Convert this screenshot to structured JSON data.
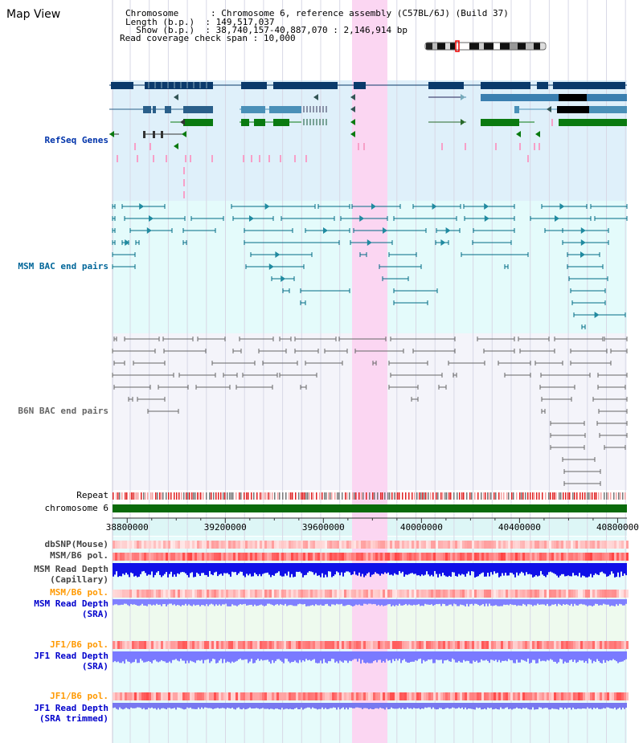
{
  "view": {
    "title": "Map View",
    "info_lines": [
      {
        "key": "Chromosome     ",
        "value": "Chromosome 6, reference assembly (C57BL/6J) (Build 37)"
      },
      {
        "key": "Length (b.p.) ",
        "value": "149,517,037"
      },
      {
        "key": "  Show (b.p.) ",
        "value": "38,740,157-40,887,070 : 2,146,914 bp"
      },
      {
        "key": "Read coverage check span",
        "value": "10,000"
      }
    ]
  },
  "tracks": {
    "refseq": "RefSeq Genes",
    "msm_bac": "MSM BAC end pairs",
    "b6n_bac": "B6N BAC end pairs",
    "repeat": "Repeat",
    "chromosome": "chromosome 6",
    "dbsnp": "dbSNP(Mouse)",
    "msm_b6_pol": "MSM/B6 pol.",
    "msm_depth_cap": [
      "MSM Read Depth",
      "(Capillary)"
    ],
    "msm_b6_pol2": "MSM/B6 pol.",
    "msm_depth_sra": [
      "MSM Read Depth",
      "(SRA)"
    ],
    "jf1_b6_pol": "JF1/B6 pol.",
    "jf1_depth_sra": [
      "JF1 Read Depth",
      "(SRA)"
    ],
    "jf1_b6_pol2": "JF1/B6 pol.",
    "jf1_depth_trim": [
      "JF1 Read Depth",
      "(SRA trimmed)"
    ]
  },
  "axis": {
    "ticks": [
      "38800000",
      "39200000",
      "39600000",
      "40000000",
      "40400000",
      "40800000"
    ],
    "start": 38740157,
    "end": 40887070
  },
  "colors": {
    "refseq_bg": "#dff0fa",
    "msm_bg": "#e4fbfb",
    "b6n_bg": "#f4f4fa",
    "highlight": "#fbd6f2",
    "msm_label": "#006699",
    "refseq_label": "#0033aa",
    "sra_label": "#0000cc",
    "pol_orange": "#ff9900"
  }
}
